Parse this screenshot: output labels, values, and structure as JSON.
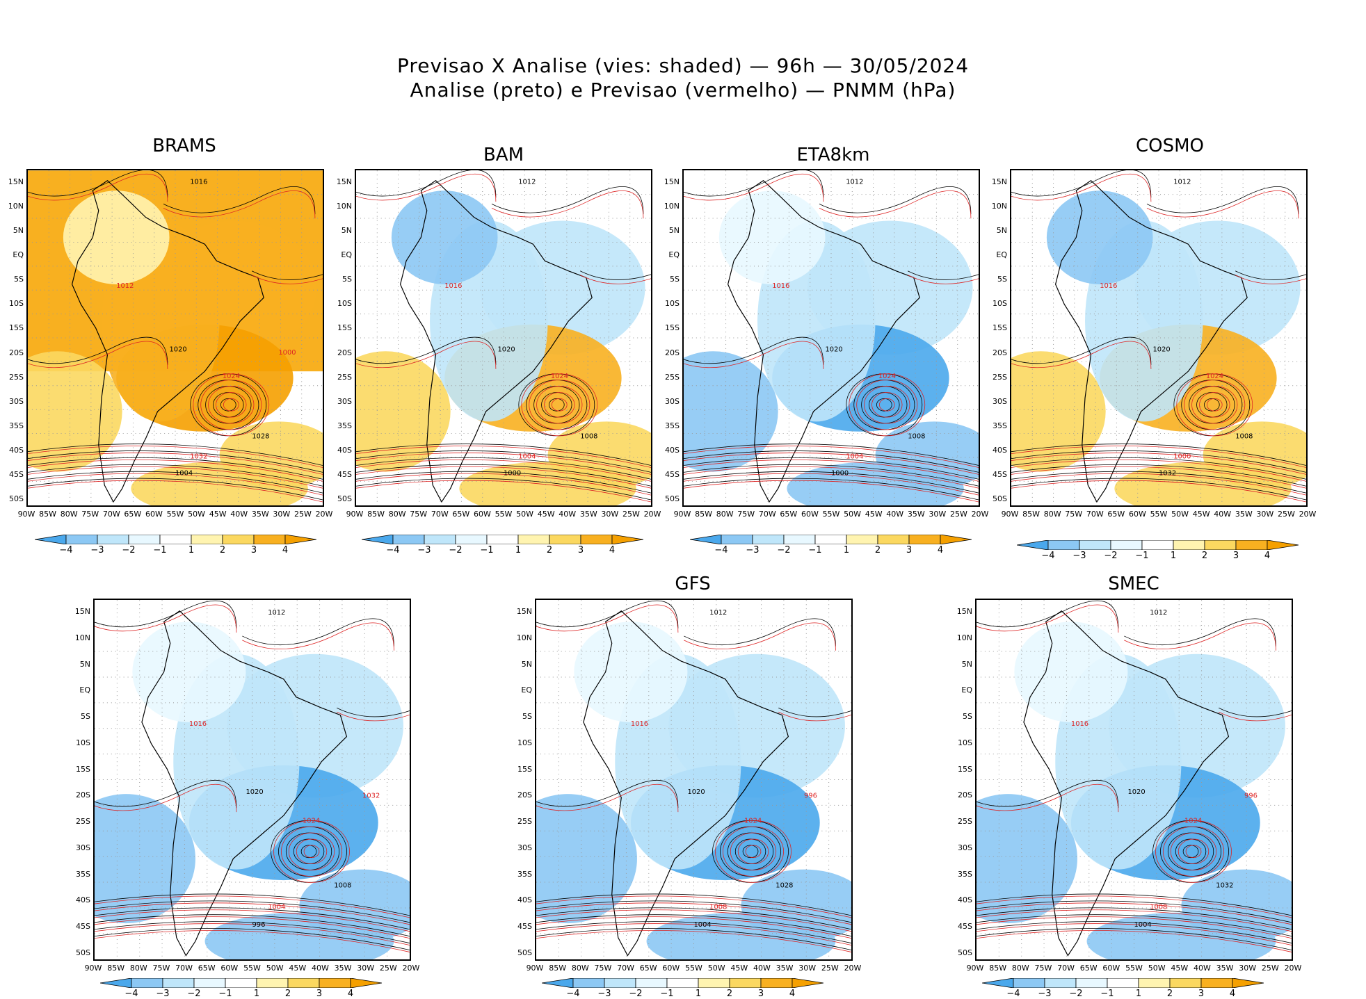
{
  "title_line1": "Previsao X Analise (vies: shaded) — 96h — 30/05/2024",
  "title_line2": "Analise (preto) e Previsao (vermelho) — PNMM (hPa)",
  "lat_labels": [
    "15N",
    "10N",
    "5N",
    "EQ",
    "5S",
    "10S",
    "15S",
    "20S",
    "25S",
    "30S",
    "35S",
    "40S",
    "45S",
    "50S"
  ],
  "lon_labels": [
    "90W",
    "85W",
    "80W",
    "75W",
    "70W",
    "65W",
    "60W",
    "55W",
    "50W",
    "45W",
    "40W",
    "35W",
    "30W",
    "25W",
    "20W"
  ],
  "colorbar": {
    "labels": [
      "−4",
      "−3",
      "−2",
      "−1",
      "1",
      "2",
      "3",
      "4"
    ],
    "colors": [
      "#4aa8ec",
      "#8cc8f4",
      "#bfe6fa",
      "#e8f8ff",
      "#ffffff",
      "#fff4b0",
      "#fbd860",
      "#f8b020",
      "#f5a000"
    ]
  },
  "panels": [
    {
      "name": "BRAMS",
      "bias": "warm",
      "isobars": [
        "1016",
        "1012",
        "1020",
        "1024",
        "1028",
        "1032",
        "1004",
        "1000"
      ]
    },
    {
      "name": "BAM",
      "bias": "mixed",
      "isobars": [
        "1012",
        "1016",
        "1020",
        "1024",
        "1008",
        "1004",
        "1000"
      ]
    },
    {
      "name": "ETA8km",
      "bias": "cool",
      "isobars": [
        "1012",
        "1016",
        "1020",
        "1024",
        "1008",
        "1004",
        "1000"
      ]
    },
    {
      "name": "COSMO",
      "bias": "mixed",
      "isobars": [
        "1012",
        "1016",
        "1020",
        "1024",
        "1008",
        "1000",
        "1032"
      ]
    },
    {
      "name": "",
      "bias": "cool",
      "isobars": [
        "1012",
        "1016",
        "1020",
        "1024",
        "1008",
        "1004",
        "996",
        "1032"
      ]
    },
    {
      "name": "GFS",
      "bias": "cool",
      "isobars": [
        "1012",
        "1016",
        "1020",
        "1024",
        "1028",
        "1008",
        "1004",
        "996"
      ]
    },
    {
      "name": "SMEC",
      "bias": "cool",
      "isobars": [
        "1012",
        "1016",
        "1020",
        "1024",
        "1032",
        "1008",
        "1004",
        "996"
      ]
    }
  ]
}
